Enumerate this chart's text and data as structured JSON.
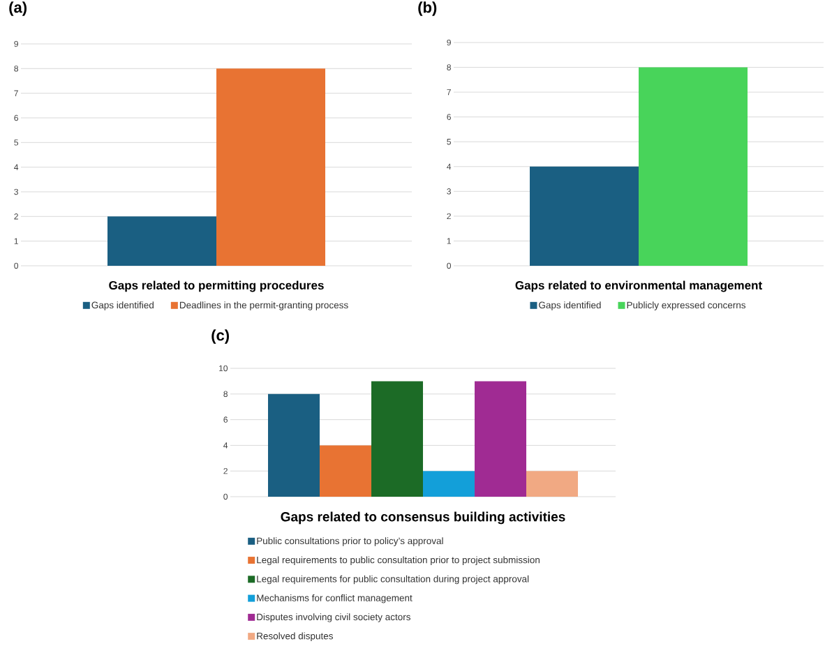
{
  "chart_data": [
    {
      "type": "bar",
      "title": "(a)",
      "xlabel": "Gaps related to permitting procedures",
      "categories": [
        null
      ],
      "series": [
        {
          "name": "Gaps identified",
          "color": "#1a5f82",
          "values": [
            2
          ]
        },
        {
          "name": "Deadlines in the permit-granting process",
          "color": "#e87333",
          "values": [
            8
          ]
        }
      ],
      "ylim": [
        0,
        9
      ],
      "yticks": [
        0,
        1,
        2,
        3,
        4,
        5,
        6,
        7,
        8,
        9
      ],
      "grid": "y",
      "legend": "bottom"
    },
    {
      "type": "bar",
      "title": "(b)",
      "xlabel": "Gaps related to environmental management",
      "categories": [
        null
      ],
      "series": [
        {
          "name": "Gaps identified",
          "color": "#1a5f82",
          "values": [
            4
          ]
        },
        {
          "name": "Publicly expressed concerns",
          "color": "#48d45a",
          "values": [
            8
          ]
        }
      ],
      "ylim": [
        0,
        9
      ],
      "yticks": [
        0,
        1,
        2,
        3,
        4,
        5,
        6,
        7,
        8,
        9
      ],
      "grid": "y",
      "legend": "bottom"
    },
    {
      "type": "bar",
      "title": "(c)",
      "xlabel": "Gaps related to consensus building activities",
      "categories": [
        null
      ],
      "series": [
        {
          "name": "Public consultations prior to policy’s approval",
          "color": "#1a5f82",
          "values": [
            8
          ]
        },
        {
          "name": "Legal requirements to public consultation prior to project submission",
          "color": "#e87333",
          "values": [
            4
          ]
        },
        {
          "name": "Legal requirements for public consultation during project approval",
          "color": "#1c6b26",
          "values": [
            9
          ]
        },
        {
          "name": "Mechanisms for conflict management",
          "color": "#139fd9",
          "values": [
            2
          ]
        },
        {
          "name": "Disputes involving civil society actors",
          "color": "#a02b93",
          "values": [
            9
          ]
        },
        {
          "name": "Resolved disputes",
          "color": "#f1a983",
          "values": [
            2
          ]
        }
      ],
      "ylim": [
        0,
        10
      ],
      "yticks": [
        0,
        2,
        4,
        6,
        8,
        10
      ],
      "grid": "y",
      "legend": "bottom"
    }
  ]
}
